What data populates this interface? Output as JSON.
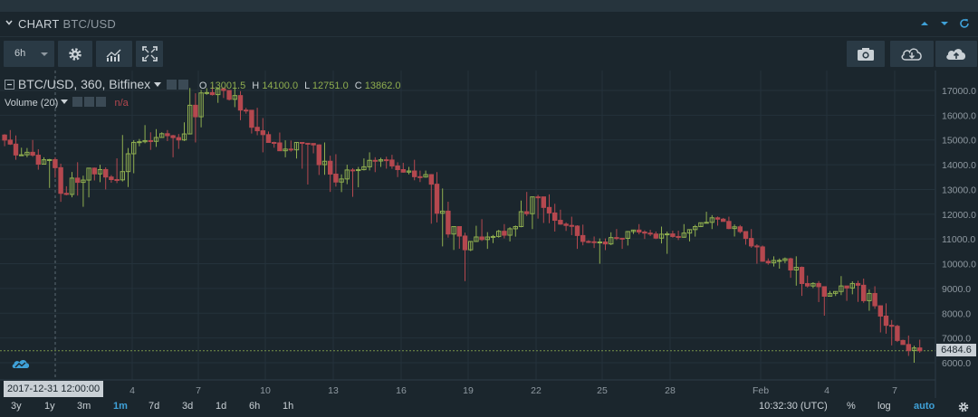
{
  "header": {
    "title": "CHART",
    "symbol": "BTC/USD"
  },
  "toolbar": {
    "interval": "6h",
    "icons": [
      "gear-icon",
      "indicators-icon",
      "fullscreen-icon",
      "camera-icon",
      "cloud-download-icon",
      "cloud-upload-icon"
    ]
  },
  "legend": {
    "main": "BTC/USD, 360, Bitfinex",
    "o_label": "O",
    "o": "13001.5",
    "h_label": "H",
    "h": "14100.0",
    "l_label": "L",
    "l": "12751.0",
    "c_label": "C",
    "c": "13862.0",
    "volume": "Volume (20)",
    "volume_value": "n/a"
  },
  "crosshair_time": "2017-12-31 12:00:00",
  "last_price": "6484.6",
  "bottom": {
    "ranges": [
      "3y",
      "1y",
      "3m",
      "1m",
      "7d",
      "3d",
      "1d",
      "6h",
      "1h"
    ],
    "active_range": "1m",
    "clock": "10:32:30 (UTC)",
    "percent": "%",
    "log": "log",
    "auto": "auto"
  },
  "colors": {
    "up": "#8fae4f",
    "down": "#b5484f",
    "background": "#1b262d",
    "accent": "#3fa1d8"
  },
  "chart_data": {
    "type": "candlestick",
    "pair": "BTC/USD",
    "exchange": "Bitfinex",
    "interval_minutes": 360,
    "ylim": [
      6000,
      17500
    ],
    "y_ticks": [
      6000,
      7000,
      8000,
      9000,
      10000,
      11000,
      12000,
      13000,
      14000,
      15000,
      16000,
      17000
    ],
    "y_tick_labels": [
      "6000.0",
      "7000.0",
      "8000.0",
      "9000.0",
      "10000.0",
      "11000.0",
      "12000.0",
      "13000.0",
      "14000.0",
      "15000.0",
      "16000.0",
      "17000.0"
    ],
    "x_tick_labels": [
      "4",
      "7",
      "10",
      "13",
      "16",
      "19",
      "22",
      "25",
      "28",
      "Feb",
      "4",
      "7"
    ],
    "x_range_dates": [
      "2017-12-28",
      "2018-02-08"
    ],
    "last_price": 6484.6,
    "candles_daily_approx": [
      {
        "date": "Dec 28",
        "o": 15200,
        "h": 15400,
        "l": 14200,
        "c": 14400
      },
      {
        "date": "Dec 29",
        "o": 14400,
        "h": 15000,
        "l": 13800,
        "c": 14200
      },
      {
        "date": "Dec 30",
        "o": 14200,
        "h": 14300,
        "l": 12500,
        "c": 12800
      },
      {
        "date": "Dec 31",
        "o": 12800,
        "h": 14100,
        "l": 12300,
        "c": 13862
      },
      {
        "date": "Jan 1",
        "o": 13862,
        "h": 14000,
        "l": 13000,
        "c": 13400
      },
      {
        "date": "Jan 2",
        "o": 13400,
        "h": 15200,
        "l": 13100,
        "c": 14900
      },
      {
        "date": "Jan 3",
        "o": 14900,
        "h": 15600,
        "l": 14600,
        "c": 15100
      },
      {
        "date": "Jan 4",
        "o": 15100,
        "h": 15400,
        "l": 14300,
        "c": 15000
      },
      {
        "date": "Jan 5",
        "o": 15000,
        "h": 17100,
        "l": 14900,
        "c": 16900
      },
      {
        "date": "Jan 6",
        "o": 16900,
        "h": 17200,
        "l": 16500,
        "c": 17000
      },
      {
        "date": "Jan 7",
        "o": 17000,
        "h": 17100,
        "l": 15800,
        "c": 16200
      },
      {
        "date": "Jan 8",
        "o": 16200,
        "h": 16300,
        "l": 14500,
        "c": 14900
      },
      {
        "date": "Jan 9",
        "o": 14900,
        "h": 15300,
        "l": 14300,
        "c": 14600
      },
      {
        "date": "Jan 10",
        "o": 14600,
        "h": 14900,
        "l": 13200,
        "c": 14800
      },
      {
        "date": "Jan 11",
        "o": 14800,
        "h": 14900,
        "l": 12900,
        "c": 13300
      },
      {
        "date": "Jan 12",
        "o": 13300,
        "h": 14000,
        "l": 12700,
        "c": 13800
      },
      {
        "date": "Jan 13",
        "o": 13800,
        "h": 14500,
        "l": 13700,
        "c": 14200
      },
      {
        "date": "Jan 14",
        "o": 14200,
        "h": 14400,
        "l": 13500,
        "c": 13700
      },
      {
        "date": "Jan 15",
        "o": 13700,
        "h": 14200,
        "l": 13300,
        "c": 13600
      },
      {
        "date": "Jan 16",
        "o": 13600,
        "h": 13700,
        "l": 10700,
        "c": 11200
      },
      {
        "date": "Jan 17",
        "o": 11200,
        "h": 11500,
        "l": 9300,
        "c": 10900
      },
      {
        "date": "Jan 18",
        "o": 10900,
        "h": 11800,
        "l": 10600,
        "c": 11100
      },
      {
        "date": "Jan 19",
        "o": 11100,
        "h": 11600,
        "l": 10900,
        "c": 11500
      },
      {
        "date": "Jan 20",
        "o": 11500,
        "h": 12900,
        "l": 11400,
        "c": 12700
      },
      {
        "date": "Jan 21",
        "o": 12700,
        "h": 12800,
        "l": 11300,
        "c": 11600
      },
      {
        "date": "Jan 22",
        "o": 11600,
        "h": 11900,
        "l": 10600,
        "c": 10900
      },
      {
        "date": "Jan 23",
        "o": 10900,
        "h": 11100,
        "l": 10000,
        "c": 10800
      },
      {
        "date": "Jan 24",
        "o": 10800,
        "h": 11400,
        "l": 10600,
        "c": 11300
      },
      {
        "date": "Jan 25",
        "o": 11300,
        "h": 11600,
        "l": 11000,
        "c": 11200
      },
      {
        "date": "Jan 26",
        "o": 11200,
        "h": 11500,
        "l": 10400,
        "c": 11100
      },
      {
        "date": "Jan 27",
        "o": 11100,
        "h": 11600,
        "l": 10900,
        "c": 11500
      },
      {
        "date": "Jan 28",
        "o": 11500,
        "h": 12100,
        "l": 11400,
        "c": 11800
      },
      {
        "date": "Jan 29",
        "o": 11800,
        "h": 11900,
        "l": 11100,
        "c": 11300
      },
      {
        "date": "Jan 30",
        "o": 11300,
        "h": 11400,
        "l": 10000,
        "c": 10100
      },
      {
        "date": "Jan 31",
        "o": 10100,
        "h": 10300,
        "l": 9800,
        "c": 10200
      },
      {
        "date": "Feb 1",
        "o": 10200,
        "h": 10300,
        "l": 8700,
        "c": 9100
      },
      {
        "date": "Feb 2",
        "o": 9100,
        "h": 9300,
        "l": 7900,
        "c": 8800
      },
      {
        "date": "Feb 3",
        "o": 8800,
        "h": 9500,
        "l": 8500,
        "c": 9200
      },
      {
        "date": "Feb 4",
        "o": 9200,
        "h": 9400,
        "l": 8100,
        "c": 8300
      },
      {
        "date": "Feb 5",
        "o": 8300,
        "h": 8400,
        "l": 6700,
        "c": 6900
      },
      {
        "date": "Feb 6",
        "o": 6900,
        "h": 7100,
        "l": 6000,
        "c": 6484.6
      }
    ]
  }
}
